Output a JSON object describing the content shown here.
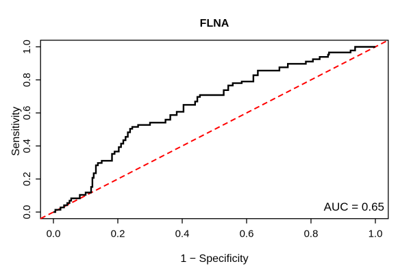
{
  "chart_data": {
    "type": "line",
    "subtype": "roc-curve-step",
    "title": "FLNA",
    "xlabel": "1 − Specificity",
    "ylabel": "Sensitivity",
    "xlim": [
      0,
      1
    ],
    "ylim": [
      0,
      1
    ],
    "x_ticks": [
      0.0,
      0.2,
      0.4,
      0.6,
      0.8,
      1.0
    ],
    "y_ticks": [
      0.0,
      0.2,
      0.4,
      0.6,
      0.8,
      1.0
    ],
    "tick_label_format": [
      "0.0",
      "0.2",
      "0.4",
      "0.6",
      "0.8",
      "1.0"
    ],
    "grid": false,
    "legend_position": "none",
    "annotation": "AUC = 0.65",
    "auc_value": 0.65,
    "series": [
      {
        "name": "ROC curve",
        "color": "#000000",
        "style": "solid",
        "linewidth": 2.4,
        "points": [
          [
            0.0,
            0.0
          ],
          [
            0.006,
            0.0
          ],
          [
            0.006,
            0.014
          ],
          [
            0.022,
            0.014
          ],
          [
            0.022,
            0.028
          ],
          [
            0.033,
            0.028
          ],
          [
            0.033,
            0.041
          ],
          [
            0.043,
            0.041
          ],
          [
            0.043,
            0.055
          ],
          [
            0.05,
            0.055
          ],
          [
            0.05,
            0.069
          ],
          [
            0.055,
            0.069
          ],
          [
            0.055,
            0.083
          ],
          [
            0.082,
            0.083
          ],
          [
            0.082,
            0.104
          ],
          [
            0.1,
            0.104
          ],
          [
            0.1,
            0.118
          ],
          [
            0.117,
            0.118
          ],
          [
            0.117,
            0.152
          ],
          [
            0.121,
            0.152
          ],
          [
            0.121,
            0.207
          ],
          [
            0.125,
            0.207
          ],
          [
            0.125,
            0.235
          ],
          [
            0.132,
            0.235
          ],
          [
            0.132,
            0.283
          ],
          [
            0.138,
            0.283
          ],
          [
            0.138,
            0.297
          ],
          [
            0.15,
            0.297
          ],
          [
            0.15,
            0.31
          ],
          [
            0.182,
            0.31
          ],
          [
            0.182,
            0.352
          ],
          [
            0.19,
            0.352
          ],
          [
            0.19,
            0.366
          ],
          [
            0.203,
            0.366
          ],
          [
            0.203,
            0.393
          ],
          [
            0.21,
            0.393
          ],
          [
            0.21,
            0.414
          ],
          [
            0.217,
            0.414
          ],
          [
            0.217,
            0.435
          ],
          [
            0.224,
            0.435
          ],
          [
            0.224,
            0.455
          ],
          [
            0.231,
            0.455
          ],
          [
            0.231,
            0.483
          ],
          [
            0.238,
            0.483
          ],
          [
            0.238,
            0.504
          ],
          [
            0.245,
            0.504
          ],
          [
            0.245,
            0.515
          ],
          [
            0.263,
            0.515
          ],
          [
            0.263,
            0.527
          ],
          [
            0.3,
            0.527
          ],
          [
            0.3,
            0.541
          ],
          [
            0.348,
            0.541
          ],
          [
            0.348,
            0.559
          ],
          [
            0.363,
            0.559
          ],
          [
            0.363,
            0.587
          ],
          [
            0.383,
            0.587
          ],
          [
            0.383,
            0.607
          ],
          [
            0.404,
            0.607
          ],
          [
            0.404,
            0.649
          ],
          [
            0.44,
            0.649
          ],
          [
            0.44,
            0.669
          ],
          [
            0.447,
            0.669
          ],
          [
            0.447,
            0.697
          ],
          [
            0.455,
            0.697
          ],
          [
            0.455,
            0.708
          ],
          [
            0.529,
            0.708
          ],
          [
            0.529,
            0.738
          ],
          [
            0.543,
            0.738
          ],
          [
            0.543,
            0.766
          ],
          [
            0.557,
            0.766
          ],
          [
            0.557,
            0.78
          ],
          [
            0.585,
            0.78
          ],
          [
            0.585,
            0.79
          ],
          [
            0.621,
            0.79
          ],
          [
            0.621,
            0.828
          ],
          [
            0.635,
            0.828
          ],
          [
            0.635,
            0.856
          ],
          [
            0.702,
            0.856
          ],
          [
            0.702,
            0.876
          ],
          [
            0.728,
            0.876
          ],
          [
            0.728,
            0.897
          ],
          [
            0.784,
            0.897
          ],
          [
            0.784,
            0.911
          ],
          [
            0.806,
            0.911
          ],
          [
            0.806,
            0.925
          ],
          [
            0.827,
            0.925
          ],
          [
            0.827,
            0.939
          ],
          [
            0.853,
            0.939
          ],
          [
            0.853,
            0.953
          ],
          [
            0.856,
            0.953
          ],
          [
            0.856,
            0.966
          ],
          [
            0.923,
            0.966
          ],
          [
            0.923,
            0.978
          ],
          [
            0.937,
            0.978
          ],
          [
            0.937,
            1.0
          ],
          [
            1.0,
            1.0
          ]
        ]
      },
      {
        "name": "Chance diagonal (y = x)",
        "color": "#ff0000",
        "style": "dashed",
        "linewidth": 2,
        "points": [
          [
            -0.04,
            -0.04
          ],
          [
            1.04,
            1.04
          ]
        ]
      }
    ]
  }
}
